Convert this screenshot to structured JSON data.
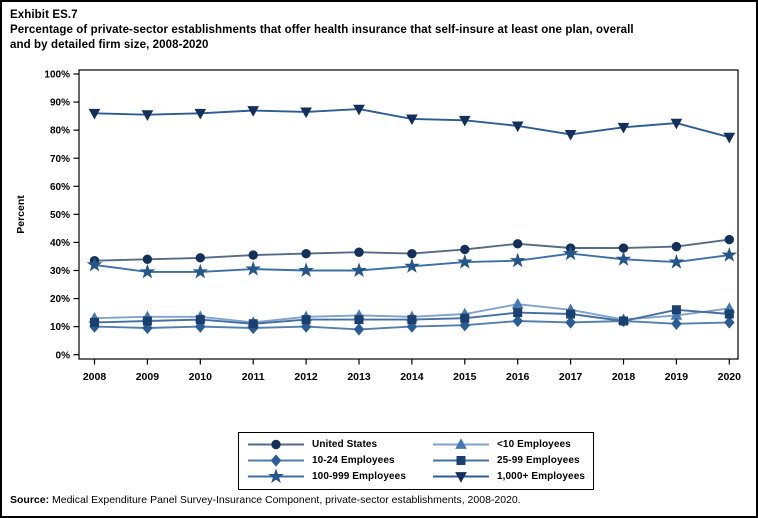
{
  "page": {
    "exhibit_label": "Exhibit ES.7",
    "title_line1": "Percentage of private-sector establishments that offer health insurance that self-insure at least one plan, overall",
    "title_line2": "and by detailed firm size, 2008-2020",
    "source_label": "Source:",
    "source_text": " Medical Expenditure Panel Survey-Insurance Component, private-sector establishments, 2008-2020."
  },
  "chart_data": {
    "type": "line",
    "title": "Percentage of private-sector establishments that offer health insurance that self-insure at least one plan, overall and by detailed firm size, 2008-2020",
    "xlabel": "",
    "ylabel": "Percent",
    "ylim": [
      0,
      100
    ],
    "ytick_step": 10,
    "ytick_suffix": "%",
    "grid": false,
    "legend_position": "bottom-boxed",
    "x": [
      2008,
      2009,
      2010,
      2011,
      2012,
      2013,
      2014,
      2015,
      2016,
      2017,
      2018,
      2019,
      2020
    ],
    "series": [
      {
        "name": "United States",
        "marker": "circle",
        "line_color": "#536B84",
        "marker_color": "#13305A",
        "values": [
          33.5,
          34,
          34.5,
          35.5,
          36,
          36.5,
          36,
          37.5,
          39.5,
          38,
          38,
          38.5,
          41
        ]
      },
      {
        "name": "<10 Employees",
        "marker": "triangle-up",
        "line_color": "#7FA3CC",
        "marker_color": "#4779B3",
        "values": [
          13,
          13.5,
          13.5,
          11.5,
          13.5,
          14,
          13.5,
          14.5,
          18,
          16,
          12.5,
          14,
          16.5
        ]
      },
      {
        "name": "10-24 Employees",
        "marker": "diamond",
        "line_color": "#527EAC",
        "marker_color": "#2A5D96",
        "values": [
          10,
          9.5,
          10,
          9.5,
          10,
          9,
          10,
          10.5,
          12,
          11.5,
          12,
          11,
          11.5
        ]
      },
      {
        "name": "25-99 Employees",
        "marker": "square",
        "line_color": "#446FA3",
        "marker_color": "#1B3F6E",
        "values": [
          11.5,
          12,
          12.5,
          11,
          12.5,
          12.5,
          12.5,
          13,
          15,
          14.5,
          12,
          16,
          14.5
        ]
      },
      {
        "name": "100-999 Employees",
        "marker": "star",
        "line_color": "#3C6FA6",
        "marker_color": "#245689",
        "values": [
          32,
          29.5,
          29.5,
          30.5,
          30,
          30,
          31.5,
          33,
          33.5,
          36,
          34,
          33,
          35.5
        ]
      },
      {
        "name": "1,000+ Employees",
        "marker": "triangle-down",
        "line_color": "#2C5C93",
        "marker_color": "#13305A",
        "values": [
          86,
          85.5,
          86,
          87,
          86.5,
          87.5,
          84,
          83.5,
          81.5,
          78.5,
          81,
          82.5,
          77.5
        ]
      }
    ]
  }
}
